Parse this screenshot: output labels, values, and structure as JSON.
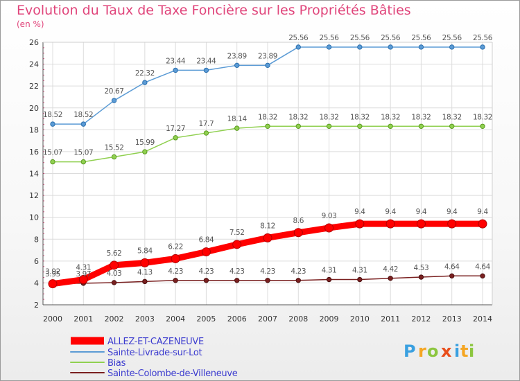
{
  "title": "Evolution du Taux de Taxe Foncière sur les Propriétés Bâties",
  "subtitle": "(en %)",
  "logo_text": "Prox i ti",
  "chart_data": {
    "type": "line",
    "x": [
      2000,
      2001,
      2002,
      2003,
      2004,
      2005,
      2006,
      2007,
      2008,
      2009,
      2010,
      2011,
      2012,
      2013,
      2014
    ],
    "ylim": [
      2,
      26
    ],
    "yticks": [
      2,
      4,
      6,
      8,
      10,
      12,
      14,
      16,
      18,
      20,
      22,
      24,
      26
    ],
    "grid": true,
    "legend_position": "bottom-left",
    "series": [
      {
        "name": "ALLEZ-ET-CAZENEUVE",
        "color": "#ff0000",
        "labels": [
          "3.92",
          "4.31",
          "5.62",
          "5.84",
          "6.22",
          "6.84",
          "7.52",
          "8.12",
          "8.6",
          "9.03",
          "9.4",
          "9.4",
          "9.4",
          "9.4",
          "9.4"
        ],
        "values": [
          3.92,
          4.31,
          5.62,
          5.84,
          6.22,
          6.84,
          7.52,
          8.12,
          8.6,
          9.03,
          9.4,
          9.4,
          9.4,
          9.4,
          9.4
        ]
      },
      {
        "name": "Sainte-Livrade-sur-Lot",
        "color": "#5b9bd5",
        "labels": [
          "18.52",
          "18.52",
          "20.67",
          "22.32",
          "23.44",
          "23.44",
          "23.89",
          "23.89",
          "25.56",
          "25.56",
          "25.56",
          "25.56",
          "25.56",
          "25.56",
          "25.56"
        ],
        "values": [
          18.52,
          18.52,
          20.67,
          22.32,
          23.44,
          23.44,
          23.89,
          23.89,
          25.56,
          25.56,
          25.56,
          25.56,
          25.56,
          25.56,
          25.56
        ]
      },
      {
        "name": "Bias",
        "color": "#90d050",
        "labels": [
          "15.07",
          "15.07",
          "15.52",
          "15.99",
          "17.27",
          "17.7",
          "18.14",
          "18.32",
          "18.32",
          "18.32",
          "18.32",
          "18.32",
          "18.32",
          "18.32",
          "18.32"
        ],
        "values": [
          15.07,
          15.07,
          15.52,
          15.99,
          17.27,
          17.7,
          18.14,
          18.32,
          18.32,
          18.32,
          18.32,
          18.32,
          18.32,
          18.32,
          18.32
        ]
      },
      {
        "name": "Sainte-Colombe-de-Villeneuve",
        "color": "#7a2020",
        "labels": [
          "3.95",
          "3.97",
          "4.03",
          "4.13",
          "4.23",
          "4.23",
          "4.23",
          "4.23",
          "4.23",
          "4.31",
          "4.31",
          "4.42",
          "4.53",
          "4.64",
          "4.64"
        ],
        "values": [
          3.95,
          3.97,
          4.03,
          4.13,
          4.23,
          4.23,
          4.23,
          4.23,
          4.23,
          4.31,
          4.31,
          4.42,
          4.53,
          4.64,
          4.64
        ]
      }
    ]
  }
}
